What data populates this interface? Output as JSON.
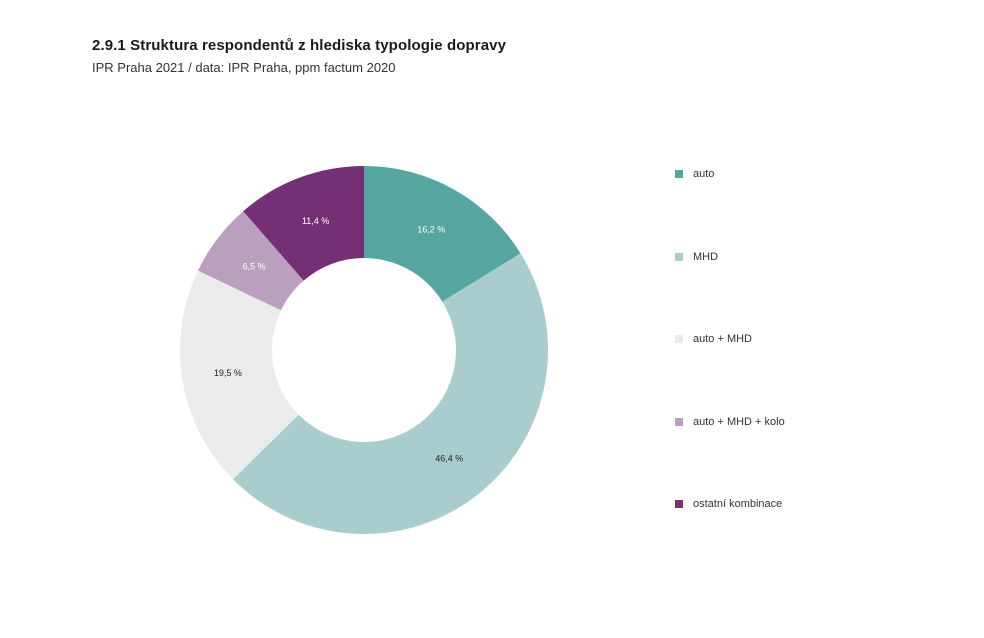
{
  "header": {
    "title": "2.9.1 Struktura respondentů z hlediska typologie dopravy",
    "subtitle": "IPR Praha 2021 / data: IPR Praha, ppm factum 2020"
  },
  "chart_data": {
    "type": "pie",
    "variant": "donut",
    "title": "2.9.1 Struktura respondentů z hlediska typologie dopravy",
    "subtitle": "IPR Praha 2021 / data: IPR Praha, ppm factum 2020",
    "legend_placement": "right",
    "start": "top, clockwise",
    "slices": [
      {
        "label": "auto",
        "value": 16.2,
        "value_label": "16,2 %",
        "color": "#55a5a1",
        "label_color": "#ffffff"
      },
      {
        "label": "MHD",
        "value": 46.4,
        "value_label": "46,4 %",
        "color": "#a9cdcd",
        "label_color": "#222222"
      },
      {
        "label": "auto + MHD",
        "value": 19.5,
        "value_label": "19,5 %",
        "color": "#ebebeb",
        "label_color": "#222222"
      },
      {
        "label": "auto + MHD + kolo",
        "value": 6.5,
        "value_label": "6,5 %",
        "color": "#ba9fbf",
        "label_color": "#ffffff"
      },
      {
        "label": "ostatní kombinace",
        "value": 11.4,
        "value_label": "11,4 %",
        "color": "#742f75",
        "label_color": "#ffffff"
      }
    ]
  }
}
